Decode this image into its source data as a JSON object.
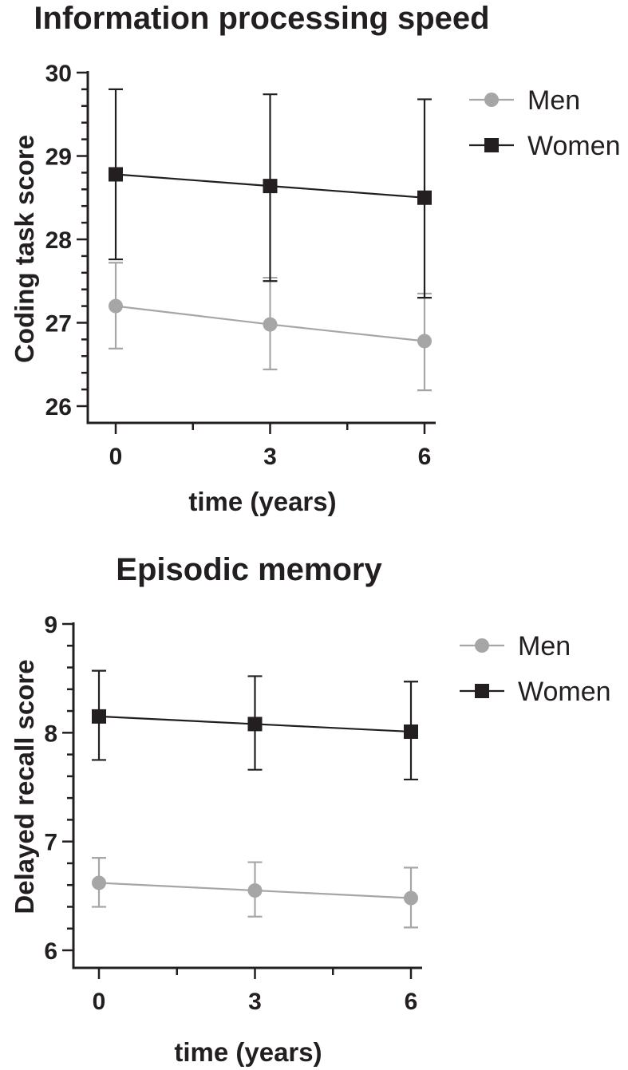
{
  "chart_data": [
    {
      "type": "line",
      "title": "Information processing speed",
      "xlabel": "time (years)",
      "ylabel": "Coding task score",
      "x": [
        0,
        3,
        6
      ],
      "xticks": [
        "0",
        "3",
        "6"
      ],
      "ylim": [
        26,
        30
      ],
      "yticks": [
        "26",
        "27",
        "28",
        "29",
        "30"
      ],
      "legend_position": "top-right",
      "grid": false,
      "series": [
        {
          "name": "Men",
          "marker": "circle",
          "color": "#a6a6a6",
          "values": [
            27.2,
            26.98,
            26.78
          ],
          "error_low": [
            26.69,
            26.44,
            26.19
          ],
          "error_high": [
            27.72,
            27.54,
            27.35
          ]
        },
        {
          "name": "Women",
          "marker": "square",
          "color": "#231f20",
          "values": [
            28.78,
            28.64,
            28.5
          ],
          "error_low": [
            27.76,
            27.5,
            27.3
          ],
          "error_high": [
            29.8,
            29.74,
            29.68
          ]
        }
      ]
    },
    {
      "type": "line",
      "title": "Episodic memory",
      "xlabel": "time (years)",
      "ylabel": "Delayed recall score",
      "x": [
        0,
        3,
        6
      ],
      "xticks": [
        "0",
        "3",
        "6"
      ],
      "ylim": [
        6,
        9
      ],
      "yticks": [
        "6",
        "7",
        "8",
        "9"
      ],
      "legend_position": "top-right",
      "grid": false,
      "series": [
        {
          "name": "Men",
          "marker": "circle",
          "color": "#a6a6a6",
          "values": [
            6.62,
            6.55,
            6.48
          ],
          "error_low": [
            6.4,
            6.31,
            6.21
          ],
          "error_high": [
            6.85,
            6.81,
            6.76
          ]
        },
        {
          "name": "Women",
          "marker": "square",
          "color": "#231f20",
          "values": [
            8.15,
            8.08,
            8.01
          ],
          "error_low": [
            7.75,
            7.66,
            7.57
          ],
          "error_high": [
            8.57,
            8.52,
            8.47
          ]
        }
      ]
    }
  ]
}
